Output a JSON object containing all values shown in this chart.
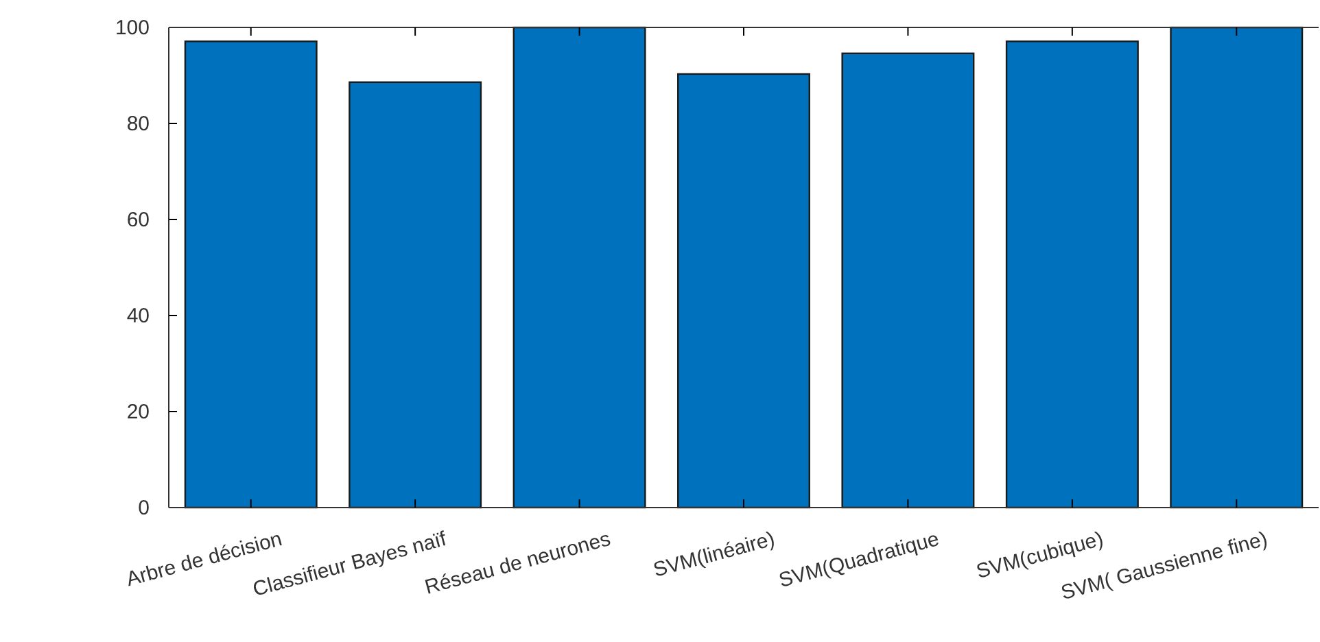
{
  "chart_data": {
    "type": "bar",
    "categories": [
      "Arbre de décision",
      "Classifieur Bayes naïf",
      "Réseau de neurones",
      "SVM(linéaire)",
      "SVM(Quadratique",
      "SVM(cubique)",
      "SVM( Gaussienne fine)"
    ],
    "values": [
      97.1,
      88.6,
      100,
      90.3,
      94.6,
      97.1,
      100
    ],
    "color": "#0072bd",
    "ylim": [
      0,
      100
    ],
    "yticks": [
      0,
      20,
      40,
      60,
      80,
      100
    ],
    "grid": false
  }
}
